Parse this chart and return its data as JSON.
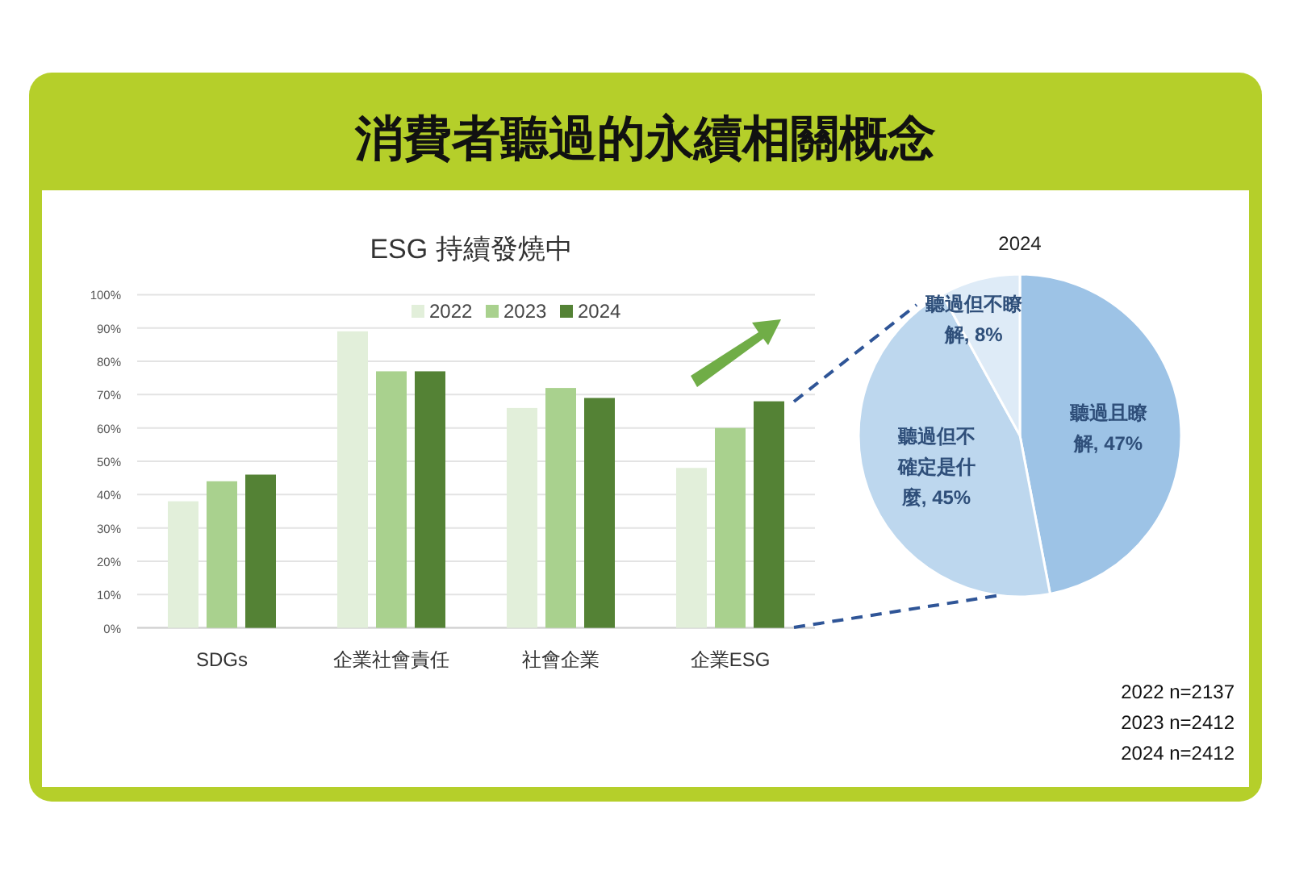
{
  "chart_data": [
    {
      "type": "bar",
      "title": "消費者聽過的永續相關概念",
      "subtitle": "ESG 持續發燒中",
      "categories": [
        "SDGs",
        "企業社會責任",
        "社會企業",
        "企業ESG"
      ],
      "series": [
        {
          "name": "2022",
          "color": "#e2efda",
          "values": [
            38,
            89,
            66,
            48
          ]
        },
        {
          "name": "2023",
          "color": "#a9d18e",
          "values": [
            44,
            77,
            72,
            60
          ]
        },
        {
          "name": "2024",
          "color": "#548235",
          "values": [
            46,
            77,
            69,
            68
          ]
        }
      ],
      "ylim": [
        0,
        100
      ],
      "yticks": [
        {
          "value": 0,
          "label": "0%"
        },
        {
          "value": 10,
          "label": "10%"
        },
        {
          "value": 20,
          "label": "20%"
        },
        {
          "value": 30,
          "label": "30%"
        },
        {
          "value": 40,
          "label": "40%"
        },
        {
          "value": 50,
          "label": "50%"
        },
        {
          "value": 60,
          "label": "60%"
        },
        {
          "value": 70,
          "label": "70%"
        },
        {
          "value": 80,
          "label": "80%"
        },
        {
          "value": 90,
          "label": "90%"
        },
        {
          "value": 100,
          "label": "100%"
        }
      ],
      "grid": "y",
      "legend": "top"
    },
    {
      "type": "pie",
      "title": "2024",
      "categories": [
        "聽過且瞭解",
        "聽過但不確定是什麼",
        "聽過但不瞭解"
      ],
      "values": [
        47,
        45,
        8
      ],
      "colors": [
        "#9dc3e6",
        "#bdd7ee",
        "#deebf7"
      ],
      "value_labels": [
        "47%",
        "45%",
        "8%"
      ],
      "annotations": [
        "2022 n=2137",
        "2023 n=2412",
        "2024 n=2412"
      ]
    }
  ]
}
